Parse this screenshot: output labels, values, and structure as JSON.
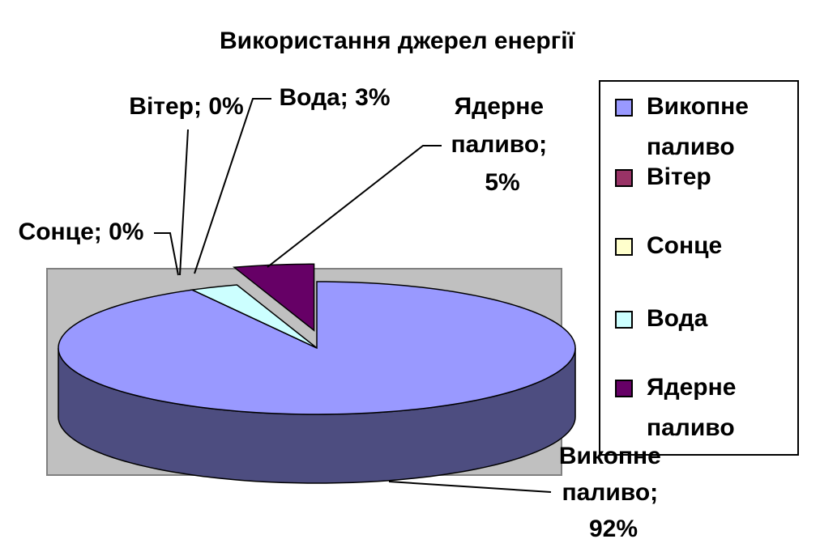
{
  "chart_data": {
    "type": "pie3d",
    "title": "Використання джерел енергії",
    "categories": [
      "Викопне паливо",
      "Вітер",
      "Сонце",
      "Вода",
      "Ядерне паливо"
    ],
    "values": [
      92,
      0,
      0,
      3,
      5
    ],
    "value_labels": [
      "Викопне паливо; 92%",
      "Вітер; 0%",
      "Сонце; 0%",
      "Вода; 3%",
      "Ядерне паливо; 5%"
    ],
    "colors": [
      "#9999ff",
      "#993366",
      "#ffffcc",
      "#ccffff",
      "#660066"
    ],
    "exploded": [
      "Ядерне паливо"
    ],
    "legend": "right"
  }
}
